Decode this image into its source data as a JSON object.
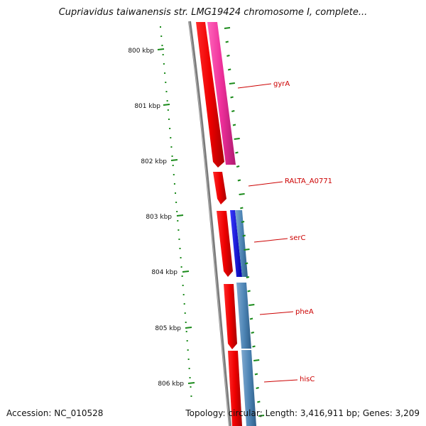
{
  "title": "Cupriavidus taiwanensis str. LMG19424 chromosome I, complete...",
  "footer": {
    "accession": "Accession: NC_010528",
    "summary": "Topology: circular; Length: 3,416,911 bp; Genes: 3,209"
  },
  "scale": {
    "unit": "kbp",
    "labels": [
      "800 kbp",
      "801 kbp",
      "802 kbp",
      "803 kbp",
      "804 kbp",
      "805 kbp",
      "806 kbp"
    ]
  },
  "genes": [
    {
      "name": "gyrA",
      "strand": "forward"
    },
    {
      "name": "RALTA_A0771",
      "strand": "forward"
    },
    {
      "name": "serC",
      "strand": "forward"
    },
    {
      "name": "pheA",
      "strand": "forward"
    },
    {
      "name": "hisC",
      "strand": "forward"
    }
  ],
  "colors": {
    "backbone": "#7a7a7a",
    "gene_arrow": "#ee1111",
    "cds_pink": "#ee3399",
    "cds_blue": "#1111ee",
    "cds_steel": "#4f86b6",
    "tick": "#1a8a1a",
    "label_red": "#cc0000",
    "leader_line": "#cc0000"
  }
}
